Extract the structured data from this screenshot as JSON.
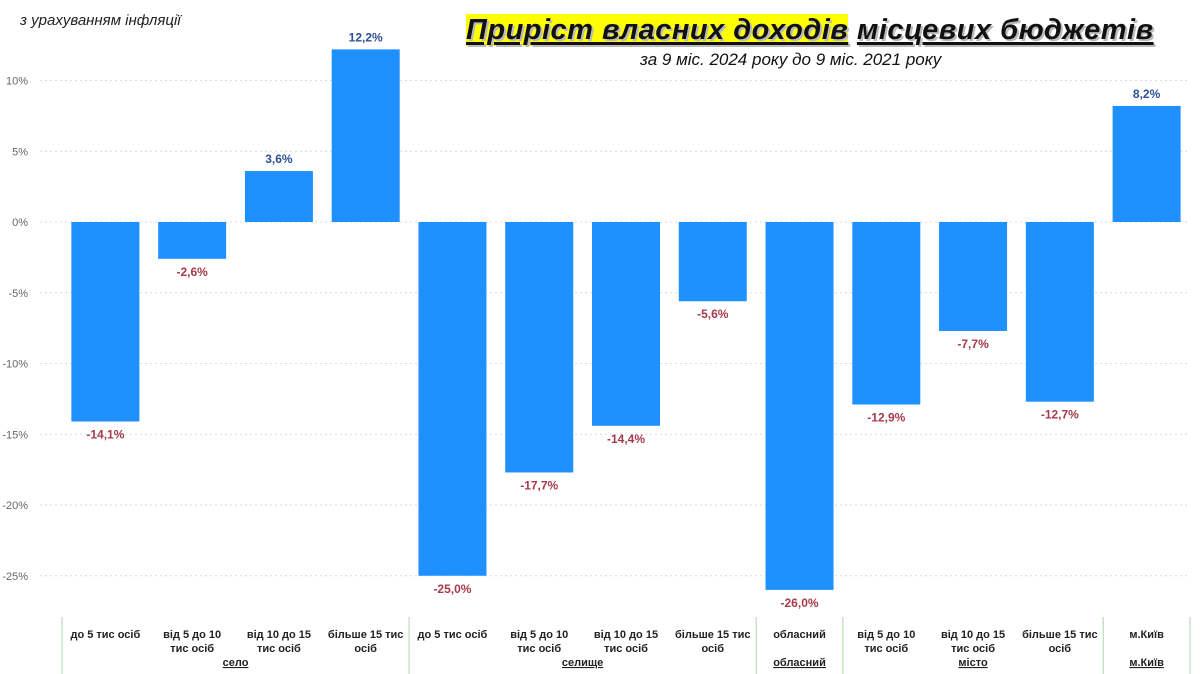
{
  "note": "з урахуванням інфляції",
  "title_highlight": "Приріст власних доходів",
  "title_rest": "місцевих бюджетів",
  "subtitle": "за 9 міс. 2024 року до 9 міс. 2021 року",
  "colors": {
    "bar": "#1e90ff",
    "label_positive": "#2e4f99",
    "label_negative": "#a63a4b",
    "gridline": "#d9d9d9",
    "separator": "#a8d8a8"
  },
  "chart_data": {
    "type": "bar",
    "ylim": [
      -28,
      13
    ],
    "yticks": [
      -25,
      -20,
      -15,
      -10,
      -5,
      0,
      5,
      10
    ],
    "ytick_labels": [
      "-25%",
      "-20%",
      "-15%",
      "-10%",
      "-5%",
      "0%",
      "5%",
      "10%"
    ],
    "grid": true,
    "categories": [
      [
        "до 5 тис осіб"
      ],
      [
        "від 5 до 10",
        "тис осіб"
      ],
      [
        "від 10 до 15",
        "тис осіб"
      ],
      [
        "більше 15 тис",
        "осіб"
      ],
      [
        "до 5 тис осіб"
      ],
      [
        "від 5 до 10",
        "тис осіб"
      ],
      [
        "від 10 до 15",
        "тис осіб"
      ],
      [
        "більше 15 тис",
        "осіб"
      ],
      [
        "обласний"
      ],
      [
        "від 5 до 10",
        "тис осіб"
      ],
      [
        "від 10 до 15",
        "тис осіб"
      ],
      [
        "більше 15 тис",
        "осіб"
      ],
      [
        "м.Київ"
      ]
    ],
    "values": [
      -14.1,
      -2.6,
      3.6,
      12.2,
      -25.0,
      -17.7,
      -14.4,
      -5.6,
      -26.0,
      -12.9,
      -7.7,
      -12.7,
      8.2
    ],
    "data_labels": [
      "-14,1%",
      "-2,6%",
      "3,6%",
      "12,2%",
      "-25,0%",
      "-17,7%",
      "-14,4%",
      "-5,6%",
      "-26,0%",
      "-12,9%",
      "-7,7%",
      "-12,7%",
      "8,2%"
    ],
    "groups": [
      {
        "label": "село",
        "start": 0,
        "end": 3
      },
      {
        "label": "селище",
        "start": 4,
        "end": 7
      },
      {
        "label": "обласний",
        "start": 8,
        "end": 8
      },
      {
        "label": "місто",
        "start": 9,
        "end": 11
      },
      {
        "label": "м.Київ",
        "start": 12,
        "end": 12
      }
    ]
  }
}
